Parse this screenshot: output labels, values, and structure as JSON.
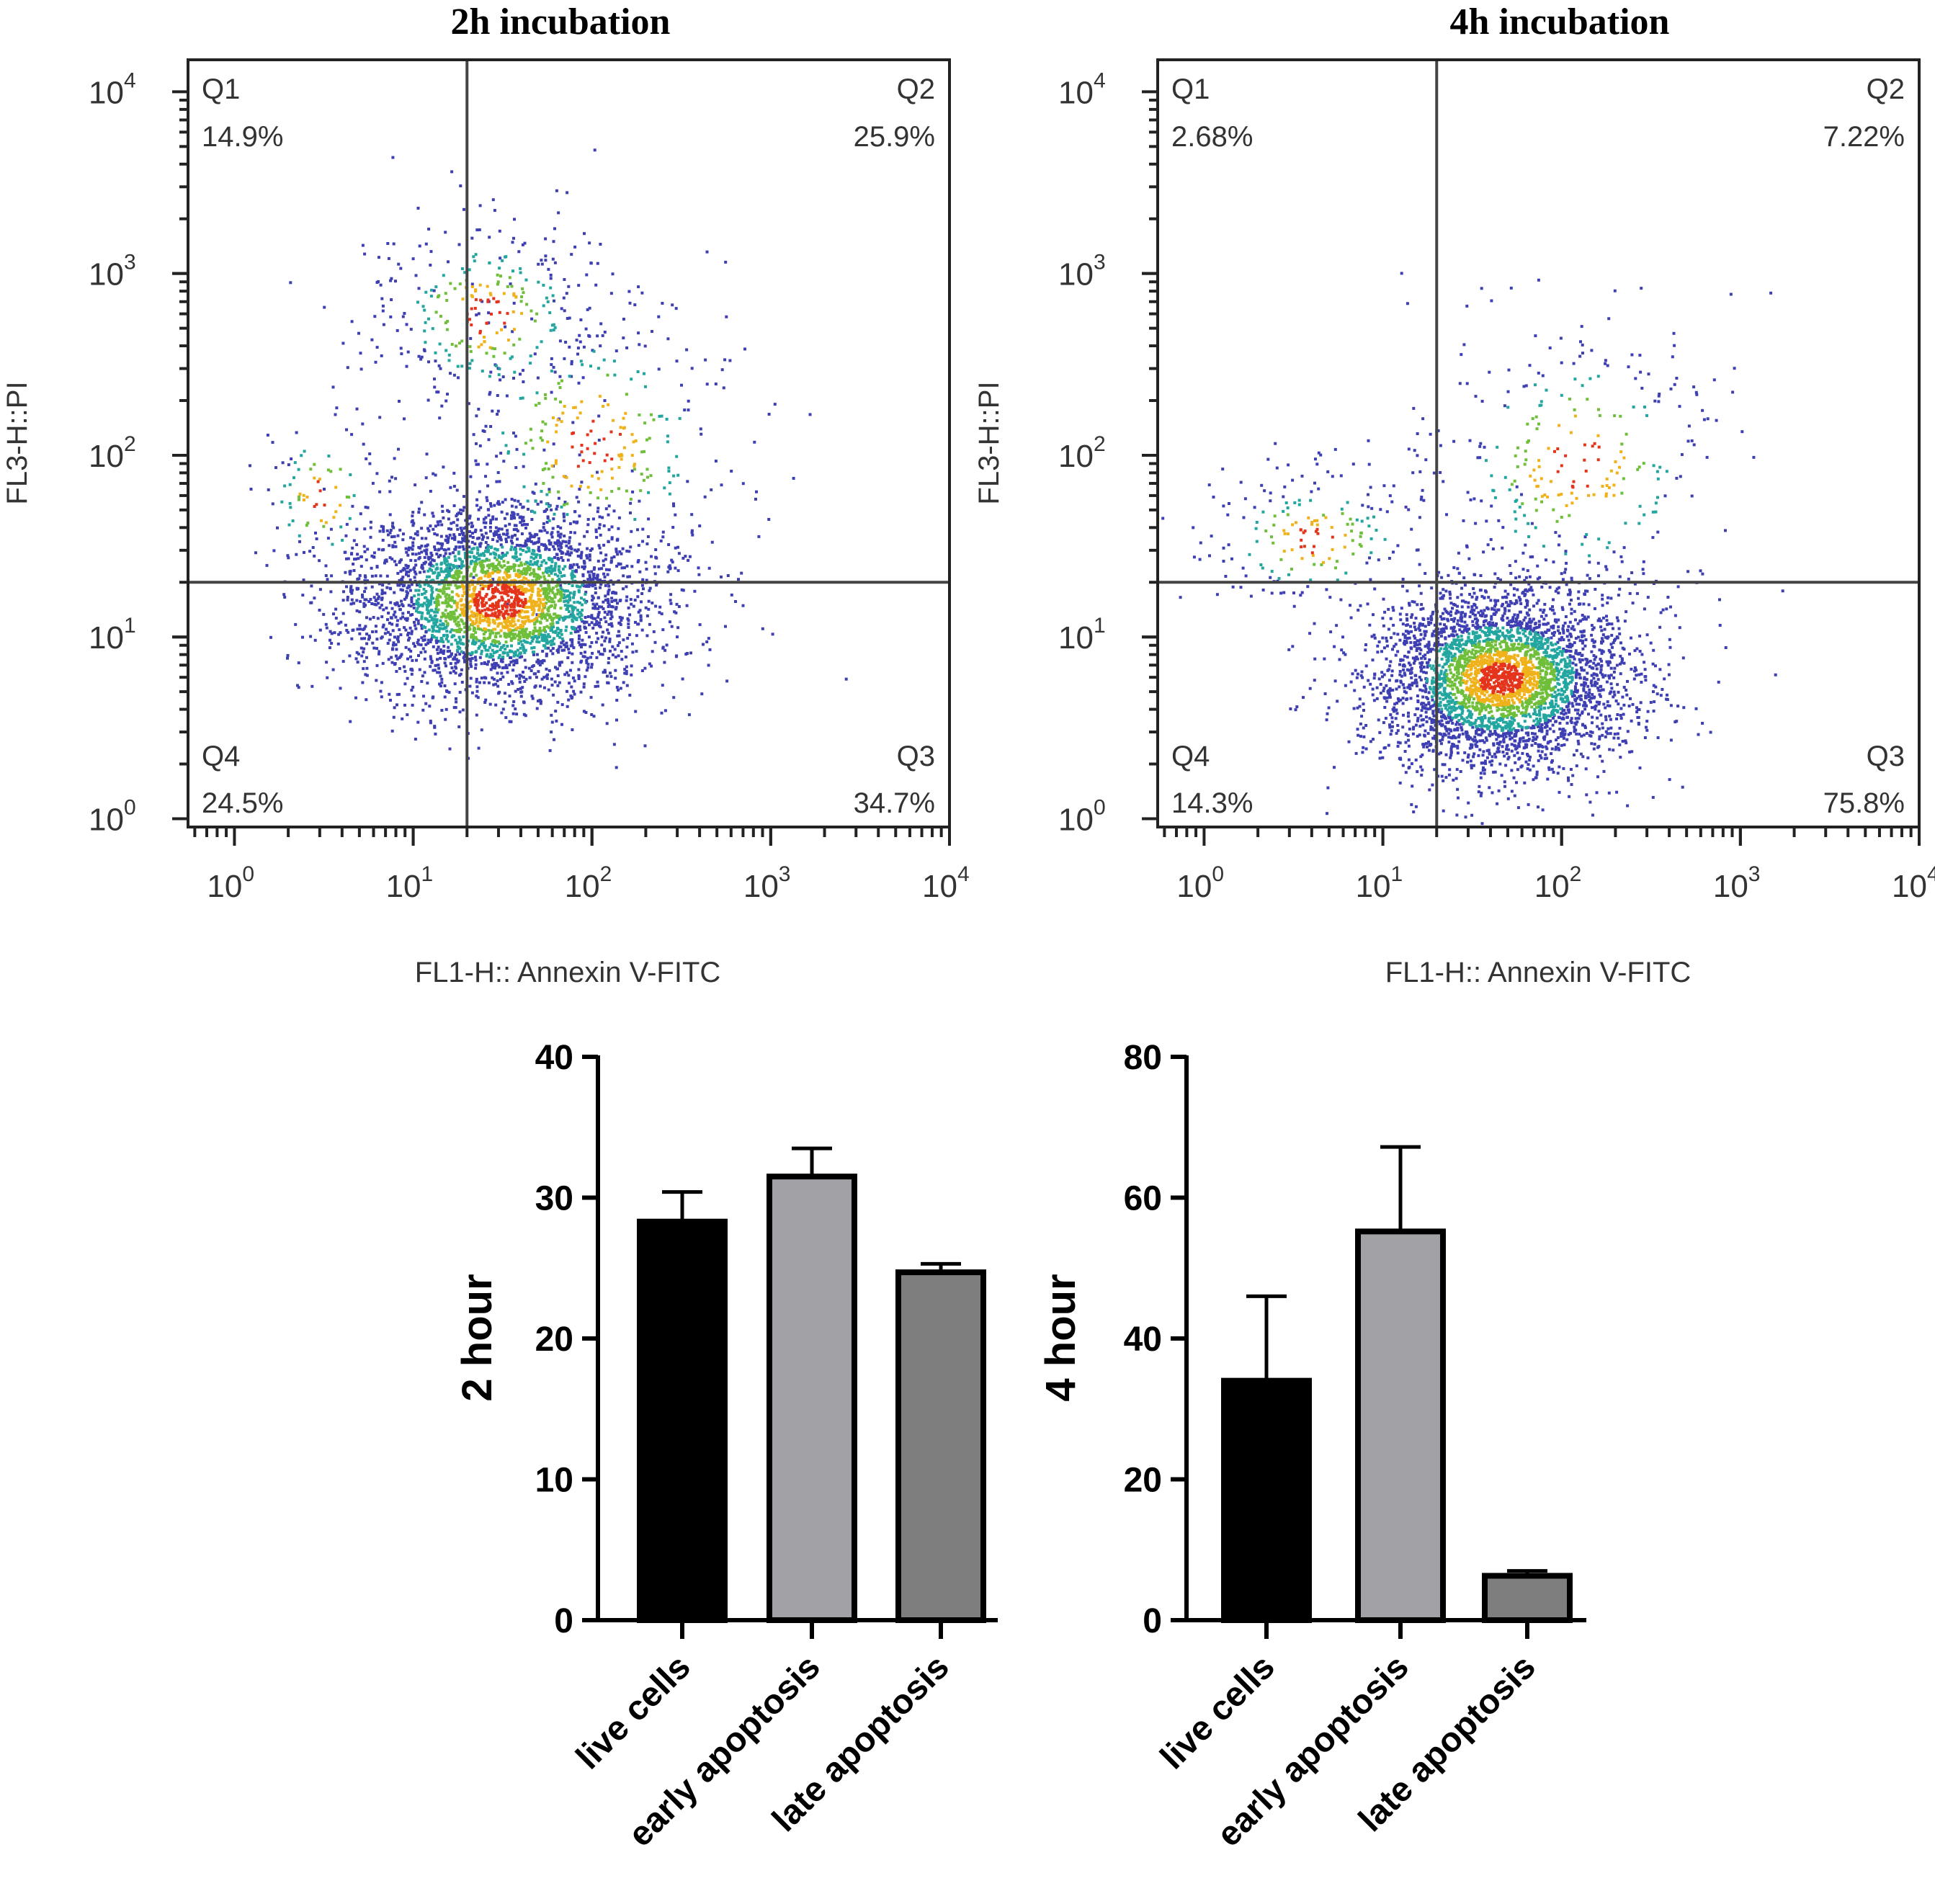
{
  "figure": "Flow cytometry Annexin V-FITC / PI apoptosis assay",
  "chart_data": [
    {
      "type": "scatter",
      "title": "2h incubation",
      "xlabel": "FL1-H:: Annexin V-FITC",
      "ylabel": "FL3-H::PI",
      "xscale": "log",
      "yscale": "log",
      "xlim": [
        0.55,
        10000
      ],
      "ylim": [
        0.9,
        15000
      ],
      "xticks": [
        {
          "value": 1,
          "exp": "0"
        },
        {
          "value": 10,
          "exp": "1"
        },
        {
          "value": 100,
          "exp": "2"
        },
        {
          "value": 1000,
          "exp": "3"
        },
        {
          "value": 10000,
          "exp": "4"
        }
      ],
      "yticks": [
        {
          "value": 1,
          "exp": "0"
        },
        {
          "value": 10,
          "exp": "1"
        },
        {
          "value": 100,
          "exp": "2"
        },
        {
          "value": 1000,
          "exp": "3"
        },
        {
          "value": 10000,
          "exp": "4"
        }
      ],
      "gate": {
        "x": 20,
        "y": 20
      },
      "quadrants": [
        {
          "id": "Q1",
          "label": "Q1",
          "percent": "14.9%",
          "position": "top-left"
        },
        {
          "id": "Q2",
          "label": "Q2",
          "percent": "25.9%",
          "position": "top-right"
        },
        {
          "id": "Q3",
          "label": "Q3",
          "percent": "34.7%",
          "position": "bottom-right"
        },
        {
          "id": "Q4",
          "label": "Q4",
          "percent": "24.5%",
          "position": "bottom-left"
        }
      ],
      "populations": [
        {
          "x": 30,
          "y": 16,
          "sx": 0.42,
          "sy": 0.27,
          "share": 0.82
        },
        {
          "x": 25,
          "y": 600,
          "sx": 0.35,
          "sy": 0.3,
          "share": 0.08
        },
        {
          "x": 3,
          "y": 60,
          "sx": 0.2,
          "sy": 0.25,
          "share": 0.02
        },
        {
          "x": 100,
          "y": 120,
          "sx": 0.45,
          "sy": 0.45,
          "share": 0.08
        }
      ],
      "event_count": 4200
    },
    {
      "type": "scatter",
      "title": "4h incubation",
      "xlabel": "FL1-H:: Annexin V-FITC",
      "ylabel": "FL3-H::PI",
      "xscale": "log",
      "yscale": "log",
      "xlim": [
        0.55,
        10000
      ],
      "ylim": [
        0.9,
        15000
      ],
      "xticks": [
        {
          "value": 1,
          "exp": "0"
        },
        {
          "value": 10,
          "exp": "1"
        },
        {
          "value": 100,
          "exp": "2"
        },
        {
          "value": 1000,
          "exp": "3"
        },
        {
          "value": 10000,
          "exp": "4"
        }
      ],
      "yticks": [
        {
          "value": 1,
          "exp": "0"
        },
        {
          "value": 10,
          "exp": "1"
        },
        {
          "value": 100,
          "exp": "2"
        },
        {
          "value": 1000,
          "exp": "3"
        },
        {
          "value": 10000,
          "exp": "4"
        }
      ],
      "gate": {
        "x": 20,
        "y": 20
      },
      "quadrants": [
        {
          "id": "Q1",
          "label": "Q1",
          "percent": "2.68%",
          "position": "top-left"
        },
        {
          "id": "Q2",
          "label": "Q2",
          "percent": "7.22%",
          "position": "top-right"
        },
        {
          "id": "Q3",
          "label": "Q3",
          "percent": "75.8%",
          "position": "bottom-right"
        },
        {
          "id": "Q4",
          "label": "Q4",
          "percent": "14.3%",
          "position": "bottom-left"
        }
      ],
      "populations": [
        {
          "x": 45,
          "y": 6,
          "sx": 0.36,
          "sy": 0.25,
          "share": 0.88
        },
        {
          "x": 4,
          "y": 35,
          "sx": 0.35,
          "sy": 0.22,
          "share": 0.05
        },
        {
          "x": 120,
          "y": 90,
          "sx": 0.45,
          "sy": 0.45,
          "share": 0.07
        }
      ],
      "event_count": 4200
    },
    {
      "type": "bar",
      "ylabel": "2 hour",
      "categories": [
        "live cells",
        "early apoptosis",
        "late apoptosis"
      ],
      "values": [
        28.3,
        31.5,
        24.7
      ],
      "errors": [
        2.1,
        2.0,
        0.6
      ],
      "colors": [
        "#000000",
        "#a2a2a6",
        "#7e7e7e"
      ],
      "ylim": [
        0,
        40
      ],
      "yticks": [
        0,
        10,
        20,
        30,
        40
      ]
    },
    {
      "type": "bar",
      "ylabel": "4 hour",
      "categories": [
        "live cells",
        "early apoptosis",
        "late apoptosis"
      ],
      "values": [
        34.0,
        55.2,
        6.3
      ],
      "errors": [
        12.0,
        12.0,
        0.7
      ],
      "colors": [
        "#000000",
        "#a2a2a6",
        "#7e7e7e"
      ],
      "ylim": [
        0,
        80
      ],
      "yticks": [
        0,
        20,
        40,
        60,
        80
      ]
    }
  ]
}
